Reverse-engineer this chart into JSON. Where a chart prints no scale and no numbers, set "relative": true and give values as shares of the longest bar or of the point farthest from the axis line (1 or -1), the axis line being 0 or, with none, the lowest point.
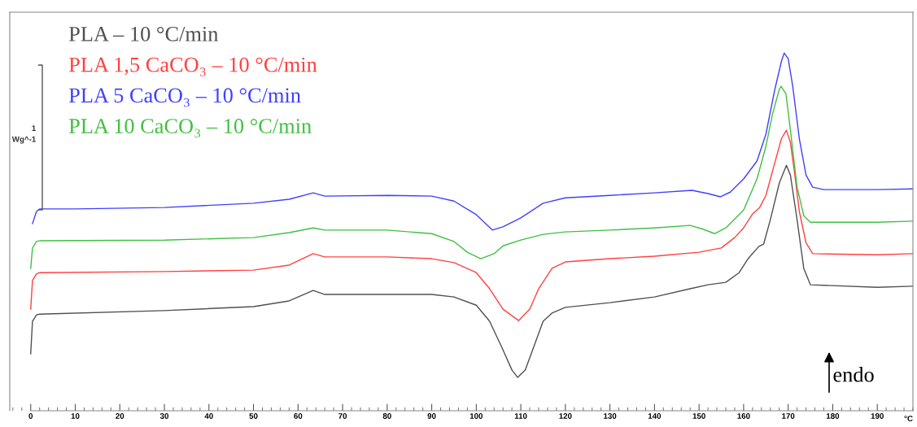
{
  "chart_data": {
    "type": "line",
    "relative": true,
    "xlabel": "°C",
    "xlim": [
      -4.7,
      198
    ],
    "xticks": [
      0,
      10,
      20,
      30,
      40,
      50,
      60,
      70,
      80,
      90,
      100,
      110,
      120,
      130,
      140,
      150,
      160,
      170,
      180,
      190
    ],
    "legend": "top left",
    "grid": false,
    "marker": "none",
    "line_style": "solid",
    "annotations": [
      "1",
      "Wg^-1",
      "endo"
    ],
    "series": [
      {
        "name": "PLA – 10 °C/min",
        "color": "#505050",
        "x": [
          0,
          0.4,
          1.3,
          2,
          30,
          50,
          58,
          63.4,
          66,
          80,
          90,
          95,
          100,
          103,
          106,
          108,
          109.3,
          111,
          113,
          115,
          117,
          120,
          130,
          140,
          148,
          152,
          156,
          159,
          161,
          163.4,
          164.5,
          166,
          168,
          169.6,
          170.5,
          172,
          173.5,
          175,
          190,
          198
        ],
        "values": [
          0.159,
          0.25,
          0.268,
          0.27,
          0.28,
          0.291,
          0.307,
          0.336,
          0.325,
          0.325,
          0.325,
          0.318,
          0.295,
          0.25,
          0.17,
          0.114,
          0.093,
          0.114,
          0.182,
          0.25,
          0.273,
          0.289,
          0.302,
          0.318,
          0.341,
          0.352,
          0.359,
          0.386,
          0.425,
          0.459,
          0.466,
          0.534,
          0.636,
          0.686,
          0.659,
          0.534,
          0.398,
          0.352,
          0.345,
          0.348
        ]
      },
      {
        "name": "PLA 1,5 CaCO₃ – 10 °C/min",
        "color": "#ff4040",
        "x": [
          0,
          0.4,
          1.3,
          2,
          30,
          50,
          58,
          63.4,
          66,
          80,
          90,
          95,
          100,
          103,
          106,
          109.5,
          112,
          114,
          117,
          120,
          130,
          140,
          150,
          155,
          158,
          160,
          162,
          163.6,
          165,
          167,
          168.5,
          169.6,
          170.5,
          171.5,
          172.5,
          174,
          175.5,
          190,
          198
        ],
        "values": [
          0.284,
          0.364,
          0.382,
          0.386,
          0.389,
          0.393,
          0.407,
          0.439,
          0.43,
          0.43,
          0.425,
          0.414,
          0.386,
          0.341,
          0.284,
          0.252,
          0.284,
          0.341,
          0.398,
          0.416,
          0.425,
          0.432,
          0.443,
          0.455,
          0.484,
          0.511,
          0.55,
          0.568,
          0.602,
          0.693,
          0.761,
          0.784,
          0.75,
          0.659,
          0.557,
          0.47,
          0.439,
          0.436,
          0.439
        ]
      },
      {
        "name": "PLA 5 CaCO₃ – 10 °C/min",
        "color": "#4040ff",
        "x": [
          0.4,
          1.3,
          2,
          10,
          30,
          50,
          58,
          63.4,
          66,
          80,
          90,
          95,
          100,
          103.6,
          106,
          110,
          115,
          120,
          130,
          140,
          148.4,
          152,
          154.8,
          157,
          160,
          163,
          165,
          167,
          168.5,
          169.1,
          170,
          171,
          172.5,
          174,
          175.5,
          178,
          190,
          198
        ],
        "values": [
          0.523,
          0.557,
          0.564,
          0.564,
          0.568,
          0.58,
          0.591,
          0.609,
          0.6,
          0.602,
          0.6,
          0.586,
          0.548,
          0.505,
          0.514,
          0.539,
          0.58,
          0.595,
          0.602,
          0.609,
          0.616,
          0.607,
          0.598,
          0.611,
          0.648,
          0.698,
          0.773,
          0.898,
          0.977,
          1.0,
          0.984,
          0.909,
          0.761,
          0.659,
          0.625,
          0.618,
          0.618,
          0.62
        ]
      },
      {
        "name": "PLA 10 CaCO₃ – 10 °C/min",
        "color": "#40c040",
        "x": [
          0,
          0.4,
          1.3,
          2,
          30,
          50,
          58,
          63.4,
          66,
          80,
          90,
          95,
          98,
          101,
          104,
          106,
          110,
          115,
          120,
          130,
          140,
          148,
          151,
          153.5,
          156,
          160,
          163,
          165,
          166.5,
          168,
          168.4,
          169.5,
          170.5,
          172,
          173.5,
          175,
          190,
          198
        ],
        "values": [
          0.398,
          0.455,
          0.473,
          0.475,
          0.477,
          0.484,
          0.498,
          0.511,
          0.505,
          0.505,
          0.495,
          0.473,
          0.443,
          0.425,
          0.439,
          0.461,
          0.477,
          0.493,
          0.5,
          0.505,
          0.511,
          0.518,
          0.507,
          0.495,
          0.511,
          0.561,
          0.648,
          0.739,
          0.83,
          0.898,
          0.907,
          0.886,
          0.784,
          0.625,
          0.545,
          0.527,
          0.527,
          0.53
        ]
      }
    ]
  }
}
